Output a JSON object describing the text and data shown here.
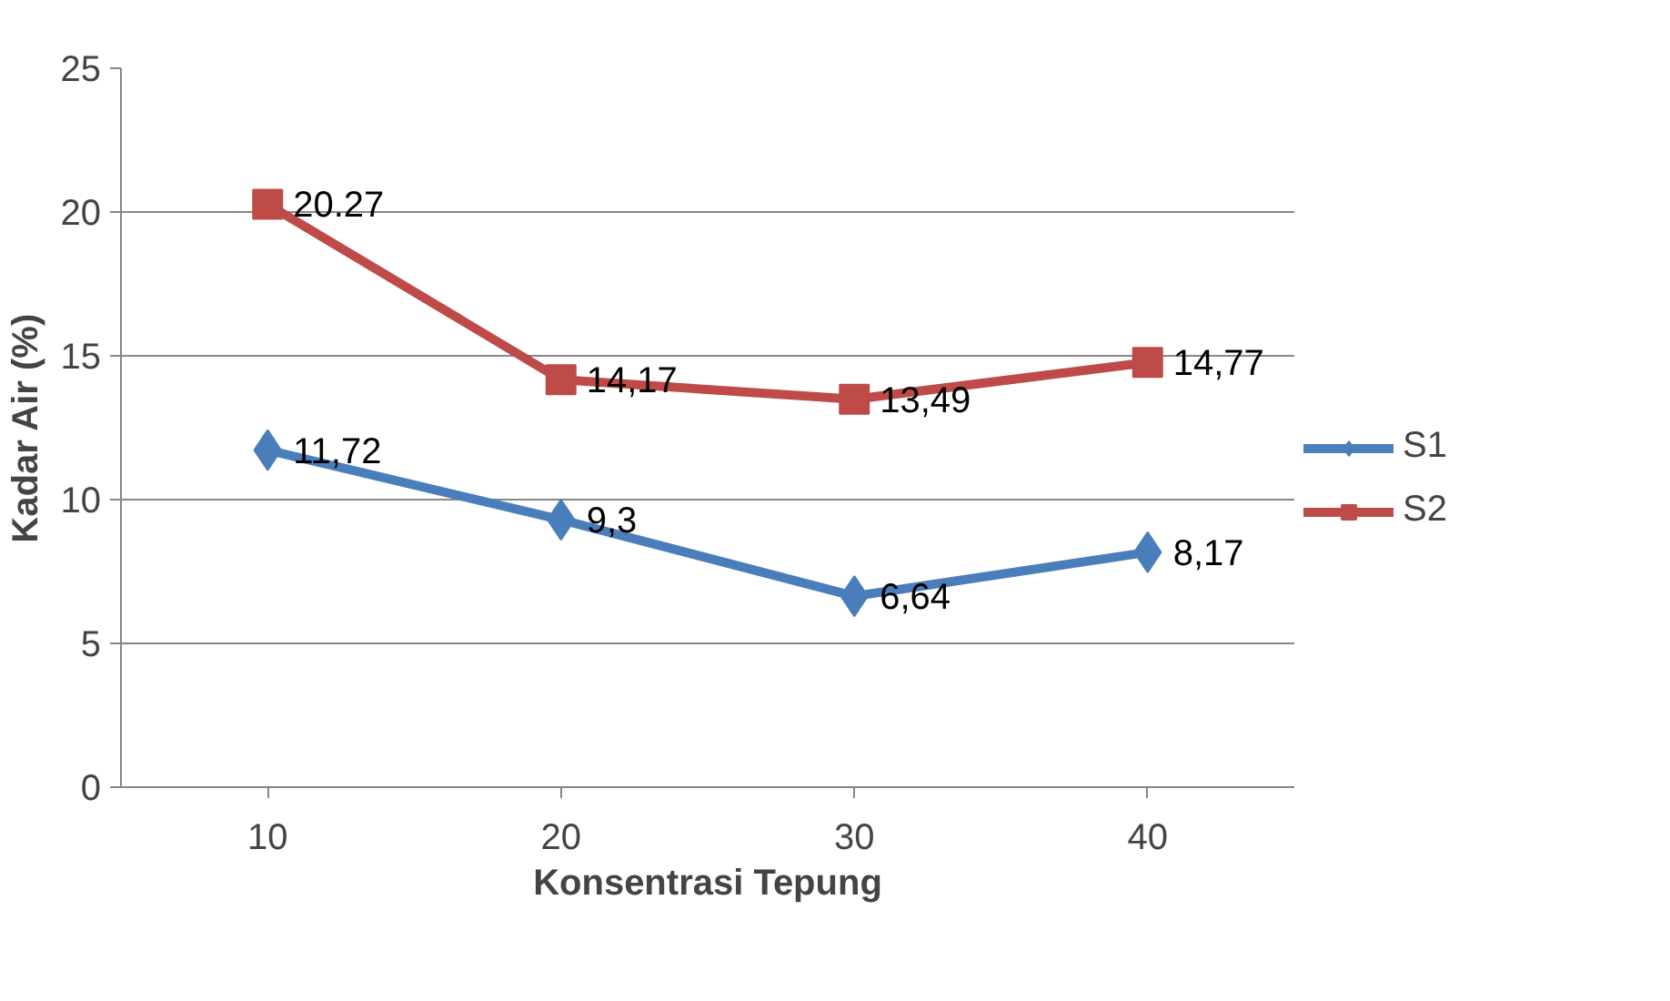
{
  "chart_data": {
    "type": "line",
    "xlabel": "Konsentrasi Tepung",
    "ylabel": "Kadar Air (%)",
    "categories": [
      "10",
      "20",
      "30",
      "40"
    ],
    "series": [
      {
        "name": "S1",
        "color": "#4a7ebb",
        "marker": "diamond",
        "values": [
          11.72,
          9.3,
          6.64,
          8.17
        ],
        "value_labels": [
          "11,72",
          "9,3",
          "6,64",
          "8,17"
        ]
      },
      {
        "name": "S2",
        "color": "#be4b48",
        "marker": "square",
        "values": [
          20.27,
          14.17,
          13.49,
          14.77
        ],
        "value_labels": [
          "20.27",
          "14,17",
          "13,49",
          "14,77"
        ]
      }
    ],
    "ylim": [
      0,
      25
    ],
    "yticks": [
      0,
      5,
      10,
      15,
      20,
      25
    ],
    "grid": "y",
    "legend": "right",
    "line_style": "solid"
  }
}
